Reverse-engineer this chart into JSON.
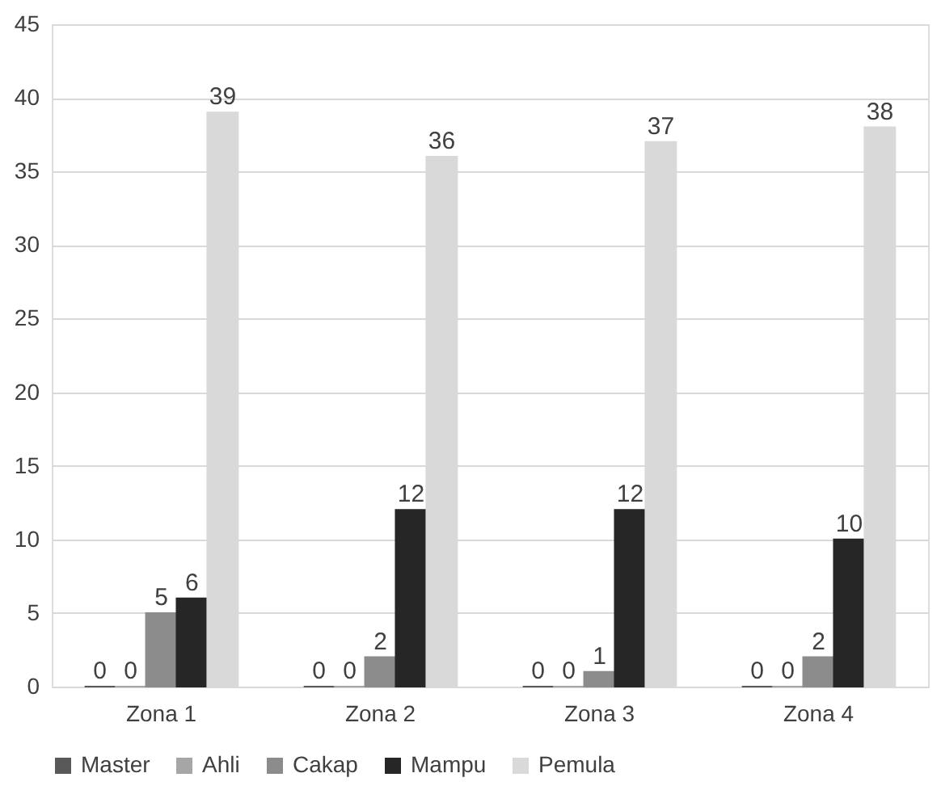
{
  "chart_data": {
    "type": "bar",
    "categories": [
      "Zona 1",
      "Zona 2",
      "Zona 3",
      "Zona 4"
    ],
    "series": [
      {
        "name": "Master",
        "color": "#595959",
        "values": [
          0,
          0,
          0,
          0
        ]
      },
      {
        "name": "Ahli",
        "color": "#a6a6a6",
        "values": [
          0,
          0,
          0,
          0
        ]
      },
      {
        "name": "Cakap",
        "color": "#8c8c8c",
        "values": [
          5,
          2,
          1,
          2
        ]
      },
      {
        "name": "Mampu",
        "color": "#262626",
        "values": [
          6,
          12,
          12,
          10
        ]
      },
      {
        "name": "Pemula",
        "color": "#d9d9d9",
        "values": [
          39,
          36,
          37,
          38
        ]
      }
    ],
    "ylim": [
      0,
      45
    ],
    "yticks": [
      0,
      5,
      10,
      15,
      20,
      25,
      30,
      35,
      40,
      45
    ],
    "grid": "y",
    "legend": "bottom",
    "data_labels": true
  }
}
